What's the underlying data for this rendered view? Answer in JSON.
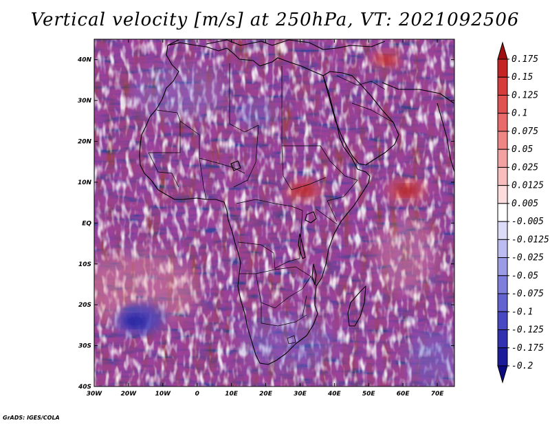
{
  "title": "Vertical velocity [m/s] at 250hPa, VT: 2021092506",
  "footer": "GrADS: IGES/COLA",
  "chart_data": {
    "type": "heatmap",
    "variable": "Vertical velocity",
    "units": "m/s",
    "level": "250hPa",
    "valid_time": "2021092506",
    "lon_range": [
      -30,
      75
    ],
    "lat_range": [
      -40,
      45
    ],
    "lat_ticks": [
      {
        "value": 40,
        "label": "40N"
      },
      {
        "value": 30,
        "label": "30N"
      },
      {
        "value": 20,
        "label": "20N"
      },
      {
        "value": 10,
        "label": "10N"
      },
      {
        "value": 0,
        "label": "EQ"
      },
      {
        "value": -10,
        "label": "10S"
      },
      {
        "value": -20,
        "label": "20S"
      },
      {
        "value": -30,
        "label": "30S"
      },
      {
        "value": -40,
        "label": "40S"
      }
    ],
    "lon_ticks": [
      {
        "value": -30,
        "label": "30W"
      },
      {
        "value": -20,
        "label": "20W"
      },
      {
        "value": -10,
        "label": "10W"
      },
      {
        "value": 0,
        "label": "0"
      },
      {
        "value": 10,
        "label": "10E"
      },
      {
        "value": 20,
        "label": "20E"
      },
      {
        "value": 30,
        "label": "30E"
      },
      {
        "value": 40,
        "label": "40E"
      },
      {
        "value": 50,
        "label": "50E"
      },
      {
        "value": 60,
        "label": "60E"
      },
      {
        "value": 70,
        "label": "70E"
      }
    ],
    "colorbar": {
      "labels": [
        "0.175",
        "0.15",
        "0.125",
        "0.1",
        "0.075",
        "0.05",
        "0.025",
        "0.0125",
        "0.005",
        "-0.005",
        "-0.0125",
        "-0.025",
        "-0.05",
        "-0.075",
        "-0.1",
        "-0.125",
        "-0.175",
        "-0.2"
      ],
      "colors": [
        "#a01010",
        "#c42424",
        "#d63c3c",
        "#e05252",
        "#e86a6a",
        "#ee8686",
        "#f3a2a2",
        "#f8bebe",
        "#fcdcdc",
        "#ffffff",
        "#dcdcf8",
        "#bcbcf0",
        "#9c9ce6",
        "#7e7edc",
        "#6262d0",
        "#4848c2",
        "#3030b0",
        "#1c1c9a",
        "#0c0c80"
      ]
    },
    "hotspots": [
      {
        "name": "Arabian Sea ascent",
        "lon": 61,
        "lat": 8,
        "value": 0.15
      },
      {
        "name": "South Sudan ascent",
        "lon": 31,
        "lat": 8,
        "value": 0.125
      },
      {
        "name": "Mediterranean ascent",
        "lon": 55,
        "lat": 40,
        "value": 0.1
      },
      {
        "name": "South Atlantic descent",
        "lon": -18,
        "lat": -24,
        "value": -0.175
      }
    ]
  }
}
